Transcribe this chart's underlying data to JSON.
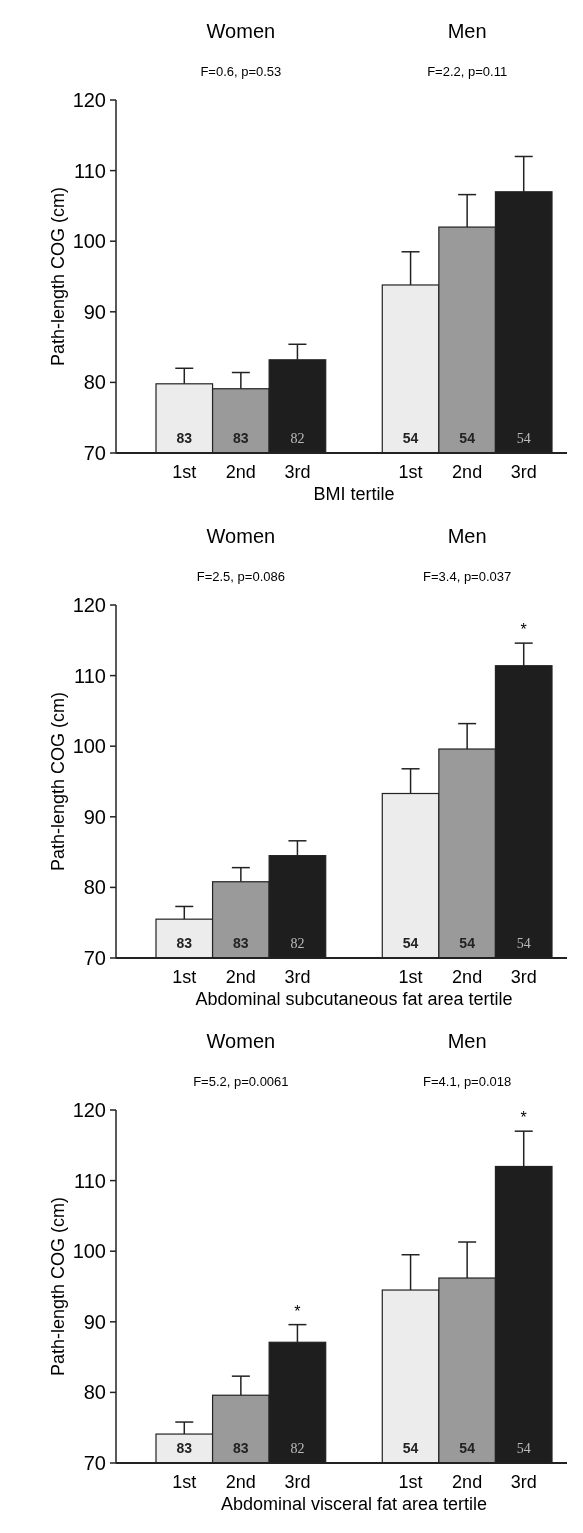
{
  "chart_data": [
    {
      "type": "bar",
      "xlabel": "BMI tertile",
      "ylabel": "Path-length COG (cm)",
      "categories": [
        "1st",
        "2nd",
        "3rd",
        null,
        "1st",
        "2nd",
        "3rd"
      ],
      "values": [
        79.8,
        79.1,
        83.2,
        null,
        93.8,
        102.0,
        107.0
      ],
      "errors": [
        2.2,
        2.3,
        2.2,
        null,
        4.7,
        4.6,
        5.0
      ],
      "colors": [
        "#ececec",
        "#9a9a9a",
        "#1e1e1e",
        null,
        "#ececec",
        "#9a9a9a",
        "#1e1e1e"
      ],
      "ylim": [
        70,
        120
      ],
      "yticks": [
        70,
        80,
        90,
        100,
        110,
        120
      ],
      "annotations": [
        "Women",
        "Men",
        "F=0.6, p=0.53",
        "F=2.2, p=0.11",
        "83",
        "83",
        "82",
        "54",
        "54",
        "54"
      ]
    },
    {
      "type": "bar",
      "xlabel": "Abdominal subcutaneous fat area tertile",
      "ylabel": "Path-length COG (cm)",
      "categories": [
        "1st",
        "2nd",
        "3rd",
        null,
        "1st",
        "2nd",
        "3rd"
      ],
      "values": [
        75.5,
        80.8,
        84.5,
        null,
        93.3,
        99.6,
        111.4
      ],
      "errors": [
        1.8,
        2.0,
        2.1,
        null,
        3.5,
        3.6,
        3.2
      ],
      "colors": [
        "#ececec",
        "#9a9a9a",
        "#1e1e1e",
        null,
        "#ececec",
        "#9a9a9a",
        "#1e1e1e"
      ],
      "ylim": [
        70,
        120
      ],
      "yticks": [
        70,
        80,
        90,
        100,
        110,
        120
      ],
      "annotations": [
        "Women",
        "Men",
        "F=2.5, p=0.086",
        "F=3.4, p=0.037",
        "83",
        "83",
        "82",
        "54",
        "54",
        "54",
        {
          "text": "*",
          "y": 111.4
        }
      ]
    },
    {
      "type": "bar",
      "xlabel": "Abdominal visceral fat area tertile",
      "ylabel": "Path-length COG (cm)",
      "categories": [
        "1st",
        "2nd",
        "3rd",
        null,
        "1st",
        "2nd",
        "3rd"
      ],
      "values": [
        74.1,
        79.6,
        87.1,
        null,
        94.5,
        96.2,
        112.0
      ],
      "errors": [
        1.7,
        2.7,
        2.5,
        null,
        5.0,
        5.1,
        5.0
      ],
      "colors": [
        "#ececec",
        "#9a9a9a",
        "#1e1e1e",
        null,
        "#ececec",
        "#9a9a9a",
        "#1e1e1e"
      ],
      "ylim": [
        70,
        120
      ],
      "yticks": [
        70,
        80,
        90,
        100,
        110,
        120
      ],
      "annotations": [
        "Women",
        "Men",
        "F=5.2, p=0.0061",
        "F=4.1, p=0.018",
        "83",
        "83",
        "82",
        "54",
        "54",
        "54",
        {
          "text": "*",
          "y": 87.1
        },
        {
          "text": "*",
          "y": 112.0
        }
      ]
    }
  ]
}
